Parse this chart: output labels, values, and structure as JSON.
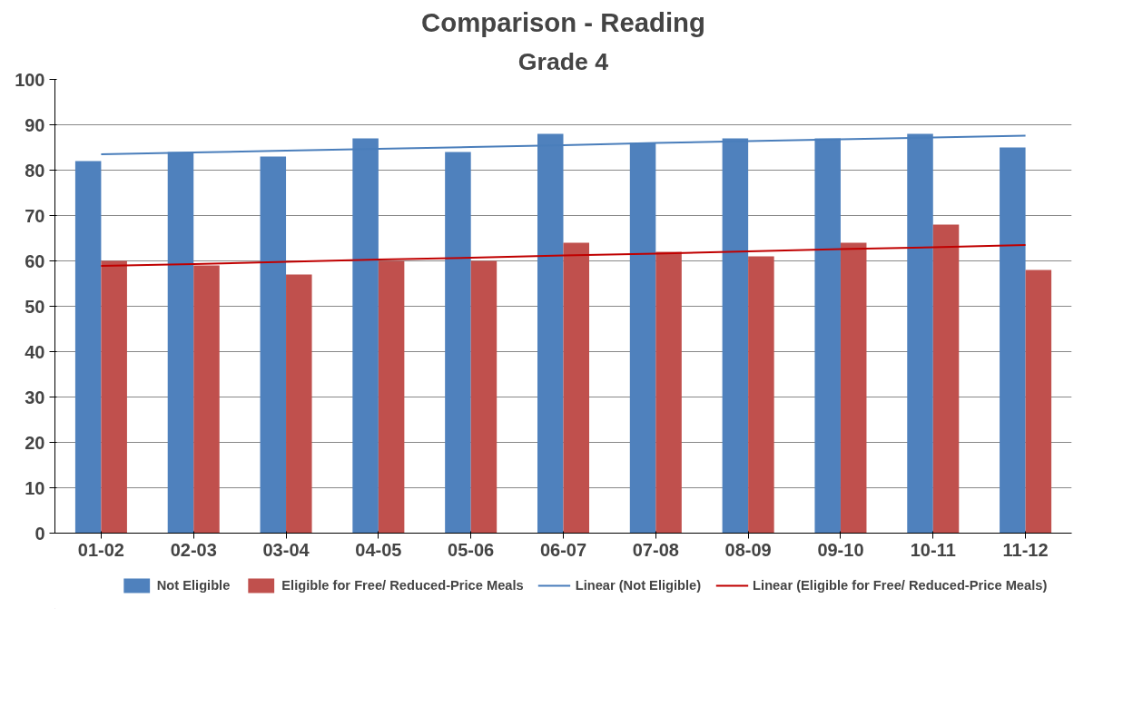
{
  "chart_data": {
    "type": "bar",
    "title": "Comparison - Reading",
    "subtitle": "Grade 4",
    "categories": [
      "01-02",
      "02-03",
      "03-04",
      "04-05",
      "05-06",
      "06-07",
      "07-08",
      "08-09",
      "09-10",
      "10-11",
      "11-12"
    ],
    "series": [
      {
        "name": "Not Eligible",
        "color": "#4f81bd",
        "values": [
          82,
          84,
          83,
          87,
          84,
          88,
          86,
          87,
          87,
          88,
          85
        ]
      },
      {
        "name": "Eligible for Free/ Reduced-Price Meals",
        "color": "#c0504d",
        "values": [
          60,
          59,
          57,
          60,
          60,
          64,
          62,
          61,
          64,
          68,
          58
        ]
      },
      {
        "name": "Linear (Not Eligible)",
        "type": "line",
        "color": "#4a7ebb",
        "values": [
          83.5,
          83.9,
          84.3,
          84.7,
          85.1,
          85.5,
          86.0,
          86.4,
          86.8,
          87.2,
          87.6
        ]
      },
      {
        "name": "Linear (Eligible for Free/ Reduced-Price Meals)",
        "type": "line",
        "color": "#c00000",
        "values": [
          58.9,
          59.3,
          59.8,
          60.3,
          60.7,
          61.2,
          61.6,
          62.1,
          62.6,
          63.0,
          63.5
        ]
      }
    ],
    "ylim": [
      0,
      100
    ],
    "yticks": [
      0,
      10,
      20,
      30,
      40,
      50,
      60,
      70,
      80,
      90,
      100
    ],
    "grid": "y",
    "legend": "bottom"
  }
}
